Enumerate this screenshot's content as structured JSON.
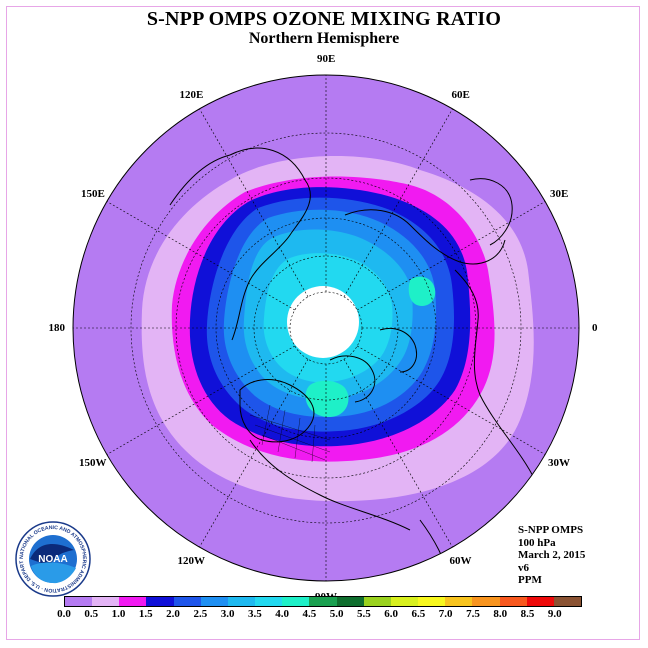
{
  "title": "S-NPP OMPS OZONE MIXING RATIO",
  "subtitle": "Northern Hemisphere",
  "longitude_labels": [
    {
      "label": "90E",
      "deg": 90
    },
    {
      "label": "60E",
      "deg": 60
    },
    {
      "label": "30E",
      "deg": 30
    },
    {
      "label": "0",
      "deg": 0
    },
    {
      "label": "30W",
      "deg": -30
    },
    {
      "label": "60W",
      "deg": -60
    },
    {
      "label": "90W",
      "deg": -90
    },
    {
      "label": "120W",
      "deg": -120
    },
    {
      "label": "150W",
      "deg": -150
    },
    {
      "label": "180",
      "deg": 180
    },
    {
      "label": "150E",
      "deg": 150
    },
    {
      "label": "120E",
      "deg": 120
    }
  ],
  "info": {
    "instrument": "S-NPP OMPS",
    "level": "100 hPa",
    "date": "March 2, 2015",
    "version": "v6",
    "units": "PPM"
  },
  "logo": {
    "text": "NOAA",
    "ring_text": "NATIONAL OCEANIC AND ATMOSPHERIC ADMINISTRATION · U.S. DEPARTMENT OF COMMERCE"
  },
  "colorbar": {
    "ticks": [
      "0.0",
      "0.5",
      "1.0",
      "1.5",
      "2.0",
      "2.5",
      "3.0",
      "3.5",
      "4.0",
      "4.5",
      "5.0",
      "5.5",
      "6.0",
      "6.5",
      "7.0",
      "7.5",
      "8.0",
      "8.5",
      "9.0"
    ],
    "colors": [
      "#b57bf2",
      "#e3b4f5",
      "#f11af1",
      "#1010d8",
      "#1e55ea",
      "#1e8ff2",
      "#1eb9f0",
      "#22d9f0",
      "#1ef0c8",
      "#1aa050",
      "#0f6e2e",
      "#9ad21e",
      "#d8f01e",
      "#f8f81e",
      "#f8c41e",
      "#f8941e",
      "#f8581e",
      "#ee0a0a",
      "#8a5232"
    ]
  },
  "map": {
    "projection": "north-polar-stereographic",
    "background_color": "#b57bf2",
    "no_data_color": "#ffffff",
    "contour_colors": [
      "#e3b4f5",
      "#f11af1",
      "#1010d8",
      "#1e55ea",
      "#1e8ff2",
      "#1eb9f0",
      "#22d9f0",
      "#1ef0c8"
    ]
  }
}
